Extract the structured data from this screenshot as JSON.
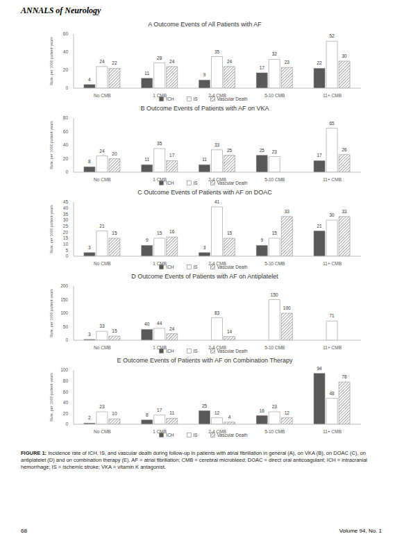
{
  "header": {
    "journal": "ANNALS of Neurology"
  },
  "chart_data": [
    {
      "type": "bar",
      "title": "A Outcome Events of All Patients with AF",
      "y_label": "Rate, per 1000 patient-years",
      "categories": [
        "No CMB",
        "1 CMB",
        "2-4 CMB",
        "5-10 CMB",
        "11+ CMB"
      ],
      "series": [
        {
          "name": "ICH",
          "color": "#595959",
          "values": [
            4,
            11,
            9,
            17,
            22
          ]
        },
        {
          "name": "IS",
          "color": "#ffffff",
          "values": [
            24,
            28,
            35,
            32,
            52
          ]
        },
        {
          "name": "Vascular Death",
          "color": "#7f7f7f",
          "values": [
            22,
            24,
            24,
            23,
            30
          ]
        }
      ],
      "ylim": [
        0,
        60
      ],
      "yticks": [
        0,
        20,
        40,
        60
      ],
      "data_labels": true,
      "legend": "bottom"
    },
    {
      "type": "bar",
      "title": "B Outcome Events of Patients with AF on VKA",
      "y_label": "Rate, per 1000 patient-years",
      "categories": [
        "No CMB",
        "1 CMB",
        "2-4 CMB",
        "5-10 CMB",
        "11+ CMB"
      ],
      "series": [
        {
          "name": "ICH",
          "color": "#595959",
          "values": [
            8,
            11,
            11,
            25,
            17
          ]
        },
        {
          "name": "IS",
          "color": "#ffffff",
          "values": [
            24,
            35,
            33,
            23,
            65
          ]
        },
        {
          "name": "Vascular Death",
          "color": "#7f7f7f",
          "values": [
            20,
            17,
            25,
            0,
            26
          ]
        }
      ],
      "ylim": [
        0,
        80
      ],
      "yticks": [
        0,
        20,
        40,
        60,
        80
      ],
      "data_labels": true,
      "legend": "bottom"
    },
    {
      "type": "bar",
      "title": "C Outcome Events of Patients with AF on DOAC",
      "y_label": "Rate, per 1000 patient-years",
      "categories": [
        "No CMB",
        "1 CMB",
        "2-4 CMB",
        "5-10 CMB",
        "11+ CMB"
      ],
      "series": [
        {
          "name": "ICH",
          "color": "#595959",
          "values": [
            3,
            9,
            3,
            9,
            21
          ]
        },
        {
          "name": "IS",
          "color": "#ffffff",
          "values": [
            21,
            15,
            41,
            15,
            30
          ]
        },
        {
          "name": "Vascular Death",
          "color": "#7f7f7f",
          "values": [
            15,
            16,
            15,
            33,
            33
          ]
        }
      ],
      "ylim": [
        0,
        45
      ],
      "yticks": [
        0,
        5,
        10,
        15,
        20,
        25,
        30,
        35,
        40,
        45
      ],
      "data_labels": true,
      "legend": "bottom"
    },
    {
      "type": "bar",
      "title": "D Outcome Events of Patients with AF on Antiplatelet",
      "y_label": "Rate, per 1000 patient-years",
      "categories": [
        "No CMB",
        "1 CMB",
        "2-4 CMB",
        "5-10 CMB",
        "11+ CMB"
      ],
      "series": [
        {
          "name": "ICH",
          "color": "#595959",
          "values": [
            3,
            40,
            0,
            0,
            0
          ]
        },
        {
          "name": "IS",
          "color": "#ffffff",
          "values": [
            33,
            44,
            83,
            150,
            71
          ]
        },
        {
          "name": "Vascular Death",
          "color": "#7f7f7f",
          "values": [
            15,
            24,
            14,
            100,
            0
          ]
        }
      ],
      "ylim": [
        0,
        200
      ],
      "yticks": [
        0,
        50,
        100,
        150,
        200
      ],
      "data_labels": true,
      "legend": "bottom"
    },
    {
      "type": "bar",
      "title": "E Outcome Events of Patients with AF on Combination Therapy",
      "y_label": "Rate, per 1000 patient-years",
      "categories": [
        "No CMB",
        "1 CMB",
        "2-4 CMB",
        "5-10 CMB",
        "11+ CMB"
      ],
      "series": [
        {
          "name": "ICH",
          "color": "#595959",
          "values": [
            2,
            8,
            25,
            16,
            94
          ]
        },
        {
          "name": "IS",
          "color": "#ffffff",
          "values": [
            23,
            17,
            12,
            23,
            48
          ]
        },
        {
          "name": "Vascular Death",
          "color": "#7f7f7f",
          "values": [
            10,
            11,
            4,
            12,
            78
          ]
        }
      ],
      "ylim": [
        0,
        100
      ],
      "yticks": [
        0,
        20,
        40,
        60,
        80,
        100
      ],
      "data_labels": true,
      "legend": "bottom"
    }
  ],
  "caption": {
    "label": "FIGURE 1:",
    "text": "Incidence rate of ICH, IS, and vascular death during follow-up in patients with atrial fibrillation in general (A), on VKA (B), on DOAC (C), on antiplatelet (D) and on combination therapy (E). AF = atrial fibrillation; CMB = cerebral microbleed; DOAC = direct oral anticoagulant; ICH = intracranial hemorrhage; IS = ischemic stroke; VKA = vitamin K antagonist."
  },
  "footer": {
    "page": "68",
    "volume": "Volume 94, No. 1"
  }
}
